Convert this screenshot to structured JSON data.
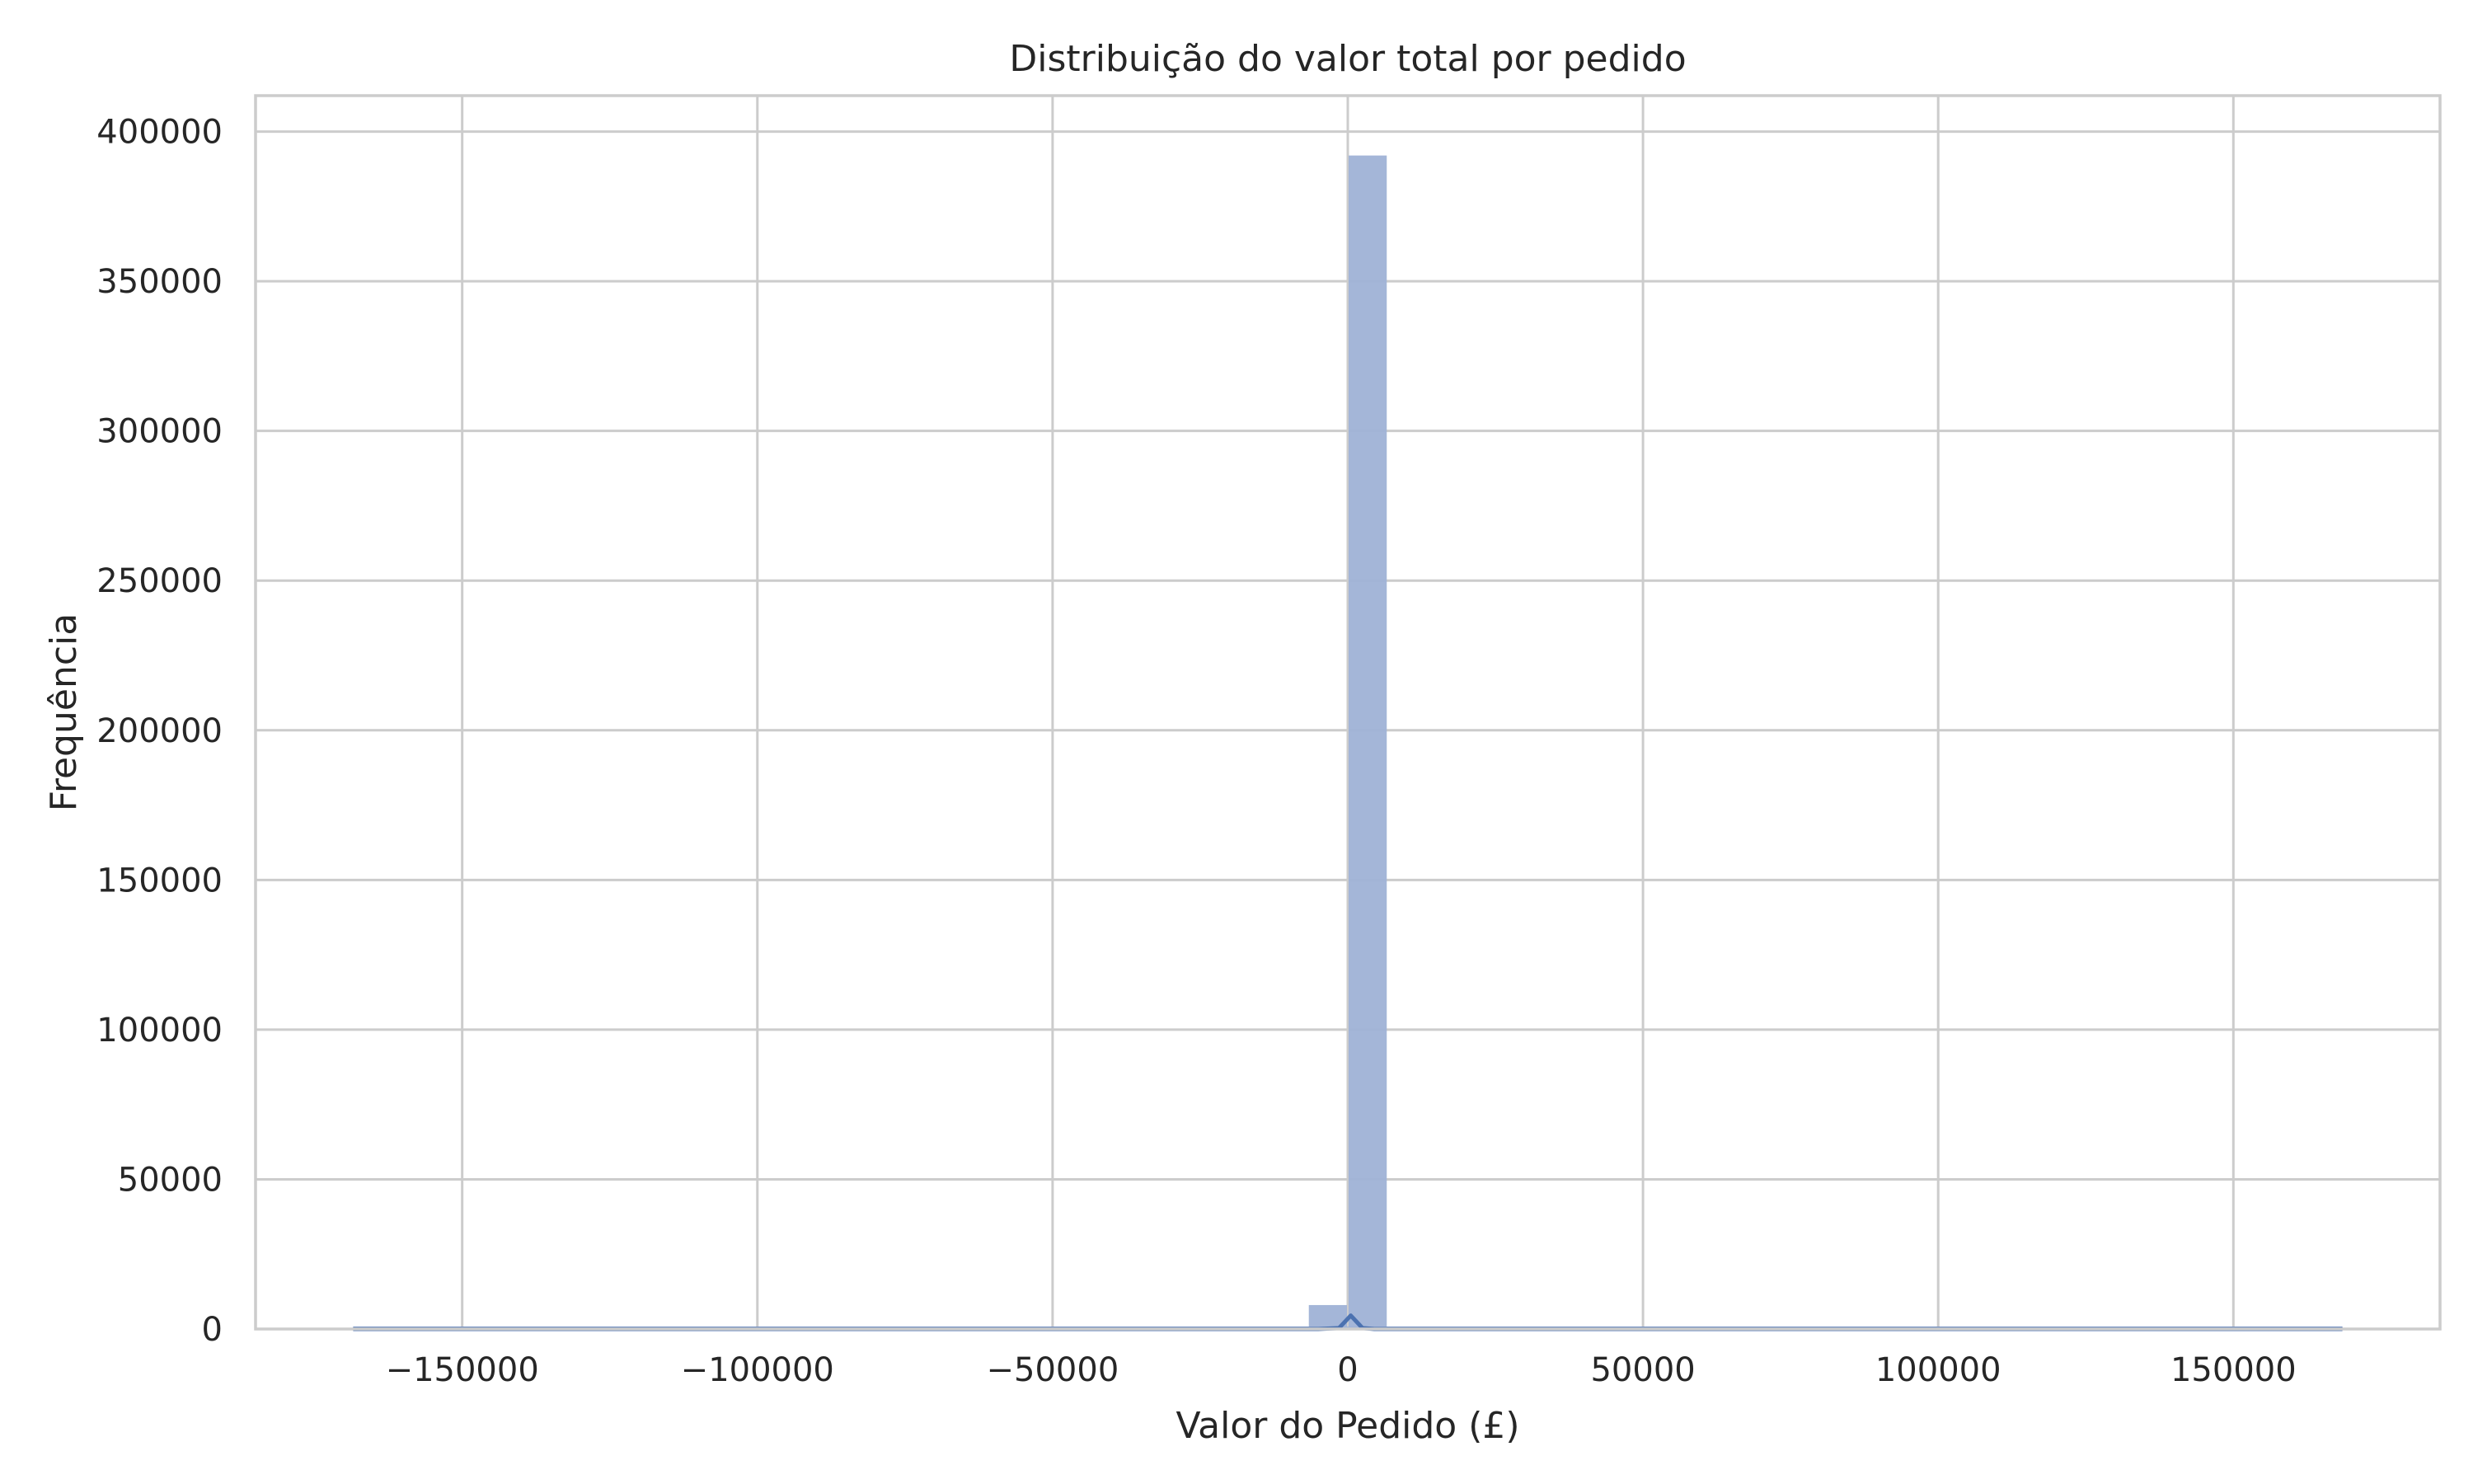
{
  "chart_data": {
    "type": "bar",
    "title": "Distribuição do valor total por pedido",
    "xlabel": "Valor do Pedido (£)",
    "ylabel": "Frequência",
    "xlim": [
      -185000,
      185000
    ],
    "ylim": [
      0,
      412000
    ],
    "grid": true,
    "legend": "none",
    "x_ticks": [
      -150000,
      -100000,
      -50000,
      0,
      50000,
      100000,
      150000
    ],
    "x_tick_labels": [
      "−150000",
      "−100000",
      "−50000",
      "0",
      "50000",
      "100000",
      "150000"
    ],
    "y_ticks": [
      0,
      50000,
      100000,
      150000,
      200000,
      250000,
      300000,
      350000,
      400000
    ],
    "y_tick_labels": [
      "0",
      "50000",
      "100000",
      "150000",
      "200000",
      "250000",
      "300000",
      "350000",
      "400000"
    ],
    "bin_range": [
      -168470,
      168470
    ],
    "bin_width": 6739,
    "bins": [
      {
        "x0": -6739,
        "x1": 0,
        "count": 8000
      },
      {
        "x0": 0,
        "x1": 6739,
        "count": 392000
      }
    ],
    "kde": {
      "x": [
        -168470,
        -5000,
        -1500,
        500,
        2500,
        4500,
        168470
      ],
      "y": [
        0,
        0,
        300,
        4500,
        300,
        0,
        0
      ]
    },
    "colors": {
      "bar_fill": "#9fb2d6",
      "kde_line": "#4c72b0",
      "grid": "#cccccc",
      "frame": "#cccccc"
    }
  }
}
